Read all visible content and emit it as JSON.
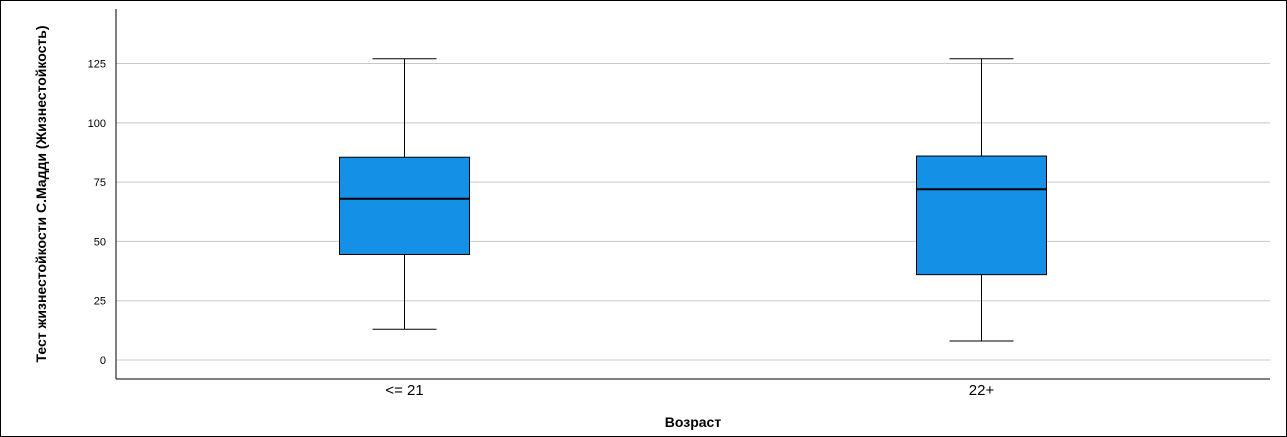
{
  "chart_data": {
    "type": "boxplot",
    "xlabel": "Возраст",
    "ylabel": "Тест жизнестойкости С.Мадди (Жизнестойкость)",
    "ylim": [
      -8,
      148
    ],
    "yticks": [
      0,
      25,
      50,
      75,
      100,
      125
    ],
    "grid": true,
    "categories": [
      "<= 21",
      "22+"
    ],
    "boxes": [
      {
        "category": "<= 21",
        "min": 13,
        "q1": 44.5,
        "median": 68,
        "q3": 85.5,
        "max": 127
      },
      {
        "category": "22+",
        "min": 8,
        "q1": 36,
        "median": 72,
        "q3": 86,
        "max": 127
      }
    ],
    "colors": {
      "box_fill": "#1490E6",
      "box_stroke": "#000000",
      "grid": "#C8C8C8",
      "axis": "#000000"
    }
  }
}
